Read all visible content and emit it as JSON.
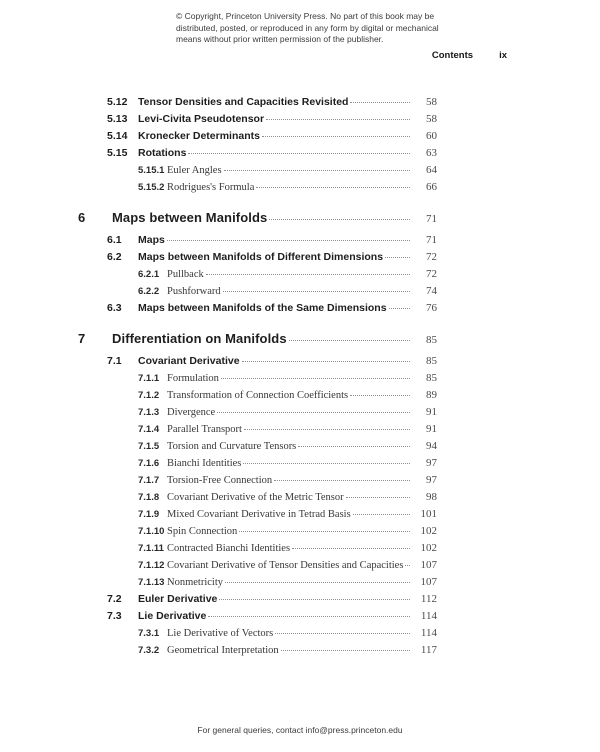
{
  "copyright": {
    "lines": [
      "© Copyright, Princeton University Press. No part of this book may be",
      "distributed, posted, or reproduced in any form by digital or mechanical",
      "means without prior written permission of the publisher."
    ]
  },
  "header": {
    "label": "Contents",
    "page_number": "ix"
  },
  "toc": {
    "entries": [
      {
        "level": "section",
        "number": "5.12",
        "title": "Tensor Densities and Capacities Revisited",
        "page": "58"
      },
      {
        "level": "section",
        "number": "5.13",
        "title": "Levi-Civita Pseudotensor",
        "page": "58"
      },
      {
        "level": "section",
        "number": "5.14",
        "title": "Kronecker Determinants",
        "page": "60"
      },
      {
        "level": "section",
        "number": "5.15",
        "title": "Rotations",
        "page": "63"
      },
      {
        "level": "subsection",
        "number": "5.15.1",
        "title": "Euler Angles",
        "page": "64"
      },
      {
        "level": "subsection",
        "number": "5.15.2",
        "title": "Rodrigues's Formula",
        "page": "66"
      },
      {
        "level": "chapter",
        "number": "6",
        "title": "Maps between Manifolds",
        "page": "71"
      },
      {
        "level": "section",
        "number": "6.1",
        "title": "Maps",
        "page": "71"
      },
      {
        "level": "section",
        "number": "6.2",
        "title": "Maps between Manifolds of Different Dimensions",
        "page": "72"
      },
      {
        "level": "subsection",
        "number": "6.2.1",
        "title": "Pullback",
        "page": "72"
      },
      {
        "level": "subsection",
        "number": "6.2.2",
        "title": "Pushforward",
        "page": "74"
      },
      {
        "level": "section",
        "number": "6.3",
        "title": "Maps between Manifolds of the Same Dimensions",
        "page": "76"
      },
      {
        "level": "chapter",
        "number": "7",
        "title": "Differentiation on Manifolds",
        "page": "85"
      },
      {
        "level": "section",
        "number": "7.1",
        "title": "Covariant Derivative",
        "page": "85"
      },
      {
        "level": "subsection",
        "number": "7.1.1",
        "title": "Formulation",
        "page": "85"
      },
      {
        "level": "subsection",
        "number": "7.1.2",
        "title": "Transformation of Connection Coefficients",
        "page": "89"
      },
      {
        "level": "subsection",
        "number": "7.1.3",
        "title": "Divergence",
        "page": "91"
      },
      {
        "level": "subsection",
        "number": "7.1.4",
        "title": "Parallel Transport",
        "page": "91"
      },
      {
        "level": "subsection",
        "number": "7.1.5",
        "title": "Torsion and Curvature Tensors",
        "page": "94"
      },
      {
        "level": "subsection",
        "number": "7.1.6",
        "title": "Bianchi Identities",
        "page": "97"
      },
      {
        "level": "subsection",
        "number": "7.1.7",
        "title": "Torsion-Free Connection",
        "page": "97"
      },
      {
        "level": "subsection",
        "number": "7.1.8",
        "title": "Covariant Derivative of the Metric Tensor",
        "page": "98"
      },
      {
        "level": "subsection",
        "number": "7.1.9",
        "title": "Mixed Covariant Derivative in Tetrad Basis",
        "page": "101"
      },
      {
        "level": "subsection",
        "number": "7.1.10",
        "title": "Spin Connection",
        "page": "102"
      },
      {
        "level": "subsection",
        "number": "7.1.11",
        "title": "Contracted Bianchi Identities",
        "page": "102"
      },
      {
        "level": "subsection",
        "number": "7.1.12",
        "title": "Covariant Derivative of Tensor Densities and Capacities",
        "page": "107"
      },
      {
        "level": "subsection",
        "number": "7.1.13",
        "title": "Nonmetricity",
        "page": "107"
      },
      {
        "level": "section",
        "number": "7.2",
        "title": "Euler Derivative",
        "page": "112"
      },
      {
        "level": "section",
        "number": "7.3",
        "title": "Lie Derivative",
        "page": "114"
      },
      {
        "level": "subsection",
        "number": "7.3.1",
        "title": "Lie Derivative of Vectors",
        "page": "114"
      },
      {
        "level": "subsection",
        "number": "7.3.2",
        "title": "Geometrical Interpretation",
        "page": "117"
      }
    ]
  },
  "footer": {
    "text": "For general queries, contact info@press.princeton.edu"
  }
}
